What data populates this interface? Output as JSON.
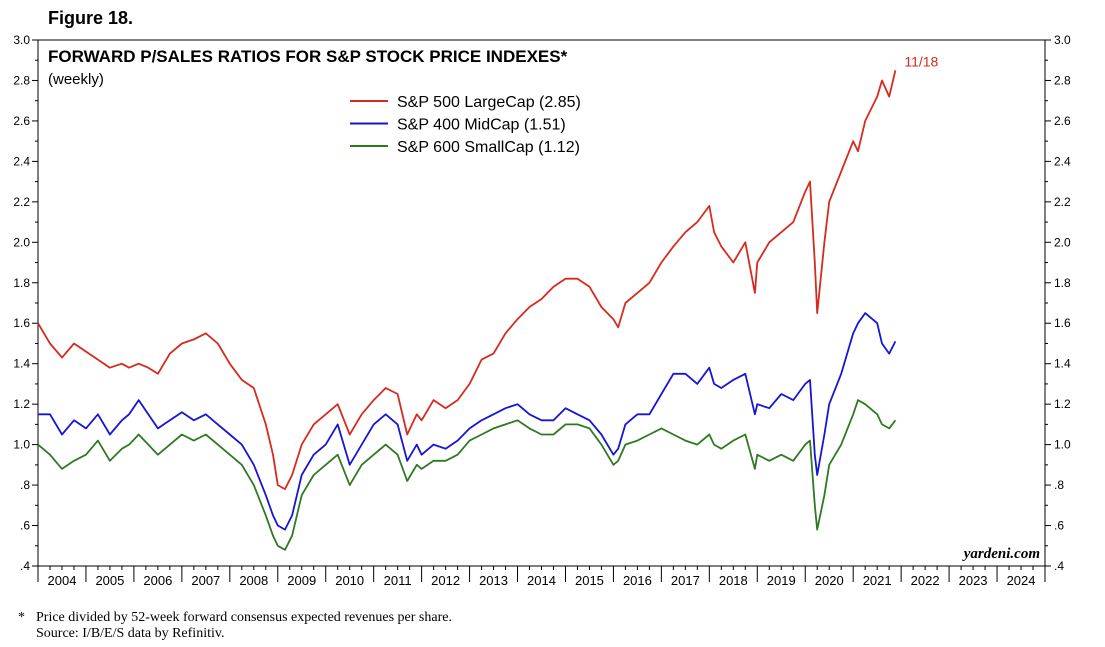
{
  "figure_label": "Figure 18.",
  "watermark": "yardeni.com",
  "footnote": "Price divided by 52-week forward consensus expected revenues per share.",
  "footnote_marker": "*",
  "source": "Source: I/B/E/S data by Refinitiv.",
  "chart_data": {
    "type": "line",
    "title": "FORWARD P/SALES RATIOS FOR S&P STOCK PRICE INDEXES*",
    "subtitle": "(weekly)",
    "xlabel": "",
    "ylabel": "",
    "xlim": [
      2004,
      2025
    ],
    "ylim": [
      0.4,
      3.0
    ],
    "y_ticks": [
      0.4,
      0.6,
      0.8,
      1.0,
      1.2,
      1.4,
      1.6,
      1.8,
      2.0,
      2.2,
      2.4,
      2.6,
      2.8,
      3.0
    ],
    "y_tick_labels": [
      ".4",
      ".6",
      ".8",
      "1.0",
      "1.2",
      "1.4",
      "1.6",
      "1.8",
      "2.0",
      "2.2",
      "2.4",
      "2.6",
      "2.8",
      "3.0"
    ],
    "x_tick_labels": [
      "2004",
      "2005",
      "2006",
      "2007",
      "2008",
      "2009",
      "2010",
      "2011",
      "2012",
      "2013",
      "2014",
      "2015",
      "2016",
      "2017",
      "2018",
      "2019",
      "2020",
      "2021",
      "2022",
      "2023",
      "2024"
    ],
    "legend_position": "top-center",
    "grid": false,
    "annotation": {
      "text": "11/18",
      "x": 2021.9,
      "y": 2.85,
      "color": "#d62a1e"
    },
    "series": [
      {
        "name": "S&P 500 LargeCap (2.85)",
        "color": "#d62a1e",
        "x": [
          2004.0,
          2004.25,
          2004.5,
          2004.75,
          2005.0,
          2005.25,
          2005.5,
          2005.75,
          2005.9,
          2006.1,
          2006.3,
          2006.5,
          2006.75,
          2007.0,
          2007.25,
          2007.5,
          2007.75,
          2008.0,
          2008.25,
          2008.5,
          2008.75,
          2008.9,
          2009.0,
          2009.15,
          2009.3,
          2009.5,
          2009.75,
          2010.0,
          2010.25,
          2010.5,
          2010.75,
          2011.0,
          2011.25,
          2011.5,
          2011.7,
          2011.9,
          2012.0,
          2012.25,
          2012.5,
          2012.75,
          2013.0,
          2013.25,
          2013.5,
          2013.75,
          2014.0,
          2014.25,
          2014.5,
          2014.75,
          2015.0,
          2015.25,
          2015.5,
          2015.75,
          2016.0,
          2016.1,
          2016.25,
          2016.5,
          2016.75,
          2017.0,
          2017.25,
          2017.5,
          2017.75,
          2018.0,
          2018.1,
          2018.25,
          2018.5,
          2018.75,
          2018.95,
          2019.0,
          2019.25,
          2019.5,
          2019.75,
          2020.0,
          2020.1,
          2020.2,
          2020.25,
          2020.4,
          2020.5,
          2020.75,
          2021.0,
          2021.1,
          2021.25,
          2021.5,
          2021.6,
          2021.75,
          2021.88
        ],
        "values": [
          1.6,
          1.5,
          1.43,
          1.5,
          1.46,
          1.42,
          1.38,
          1.4,
          1.38,
          1.4,
          1.38,
          1.35,
          1.45,
          1.5,
          1.52,
          1.55,
          1.5,
          1.4,
          1.32,
          1.28,
          1.1,
          0.95,
          0.8,
          0.78,
          0.85,
          1.0,
          1.1,
          1.15,
          1.2,
          1.05,
          1.15,
          1.22,
          1.28,
          1.25,
          1.05,
          1.15,
          1.12,
          1.22,
          1.18,
          1.22,
          1.3,
          1.42,
          1.45,
          1.55,
          1.62,
          1.68,
          1.72,
          1.78,
          1.82,
          1.82,
          1.78,
          1.68,
          1.62,
          1.58,
          1.7,
          1.75,
          1.8,
          1.9,
          1.98,
          2.05,
          2.1,
          2.18,
          2.05,
          1.98,
          1.9,
          2.0,
          1.75,
          1.9,
          2.0,
          2.05,
          2.1,
          2.25,
          2.3,
          1.9,
          1.65,
          2.0,
          2.2,
          2.35,
          2.5,
          2.45,
          2.6,
          2.72,
          2.8,
          2.72,
          2.85
        ]
      },
      {
        "name": "S&P 400 MidCap (1.51)",
        "color": "#1515d6",
        "x": [
          2004.0,
          2004.25,
          2004.5,
          2004.75,
          2005.0,
          2005.25,
          2005.5,
          2005.75,
          2005.9,
          2006.1,
          2006.3,
          2006.5,
          2006.75,
          2007.0,
          2007.25,
          2007.5,
          2007.75,
          2008.0,
          2008.25,
          2008.5,
          2008.75,
          2008.9,
          2009.0,
          2009.15,
          2009.3,
          2009.5,
          2009.75,
          2010.0,
          2010.25,
          2010.5,
          2010.75,
          2011.0,
          2011.25,
          2011.5,
          2011.7,
          2011.9,
          2012.0,
          2012.25,
          2012.5,
          2012.75,
          2013.0,
          2013.25,
          2013.5,
          2013.75,
          2014.0,
          2014.25,
          2014.5,
          2014.75,
          2015.0,
          2015.25,
          2015.5,
          2015.75,
          2016.0,
          2016.1,
          2016.25,
          2016.5,
          2016.75,
          2017.0,
          2017.25,
          2017.5,
          2017.75,
          2018.0,
          2018.1,
          2018.25,
          2018.5,
          2018.75,
          2018.95,
          2019.0,
          2019.25,
          2019.5,
          2019.75,
          2020.0,
          2020.1,
          2020.2,
          2020.25,
          2020.4,
          2020.5,
          2020.75,
          2021.0,
          2021.1,
          2021.25,
          2021.5,
          2021.6,
          2021.75,
          2021.88
        ],
        "values": [
          1.15,
          1.15,
          1.05,
          1.12,
          1.08,
          1.15,
          1.05,
          1.12,
          1.15,
          1.22,
          1.15,
          1.08,
          1.12,
          1.16,
          1.12,
          1.15,
          1.1,
          1.05,
          1.0,
          0.9,
          0.75,
          0.65,
          0.6,
          0.58,
          0.65,
          0.85,
          0.95,
          1.0,
          1.1,
          0.9,
          1.0,
          1.1,
          1.15,
          1.1,
          0.92,
          1.0,
          0.95,
          1.0,
          0.98,
          1.02,
          1.08,
          1.12,
          1.15,
          1.18,
          1.2,
          1.15,
          1.12,
          1.12,
          1.18,
          1.15,
          1.12,
          1.05,
          0.95,
          0.98,
          1.1,
          1.15,
          1.15,
          1.25,
          1.35,
          1.35,
          1.3,
          1.38,
          1.3,
          1.28,
          1.32,
          1.35,
          1.15,
          1.2,
          1.18,
          1.25,
          1.22,
          1.3,
          1.32,
          0.95,
          0.85,
          1.05,
          1.2,
          1.35,
          1.55,
          1.6,
          1.65,
          1.6,
          1.5,
          1.45,
          1.51
        ]
      },
      {
        "name": "S&P 600 SmallCap (1.12)",
        "color": "#2f7a21",
        "x": [
          2004.0,
          2004.25,
          2004.5,
          2004.75,
          2005.0,
          2005.25,
          2005.5,
          2005.75,
          2005.9,
          2006.1,
          2006.3,
          2006.5,
          2006.75,
          2007.0,
          2007.25,
          2007.5,
          2007.75,
          2008.0,
          2008.25,
          2008.5,
          2008.75,
          2008.9,
          2009.0,
          2009.15,
          2009.3,
          2009.5,
          2009.75,
          2010.0,
          2010.25,
          2010.5,
          2010.75,
          2011.0,
          2011.25,
          2011.5,
          2011.7,
          2011.9,
          2012.0,
          2012.25,
          2012.5,
          2012.75,
          2013.0,
          2013.25,
          2013.5,
          2013.75,
          2014.0,
          2014.25,
          2014.5,
          2014.75,
          2015.0,
          2015.25,
          2015.5,
          2015.75,
          2016.0,
          2016.1,
          2016.25,
          2016.5,
          2016.75,
          2017.0,
          2017.25,
          2017.5,
          2017.75,
          2018.0,
          2018.1,
          2018.25,
          2018.5,
          2018.75,
          2018.95,
          2019.0,
          2019.25,
          2019.5,
          2019.75,
          2020.0,
          2020.1,
          2020.2,
          2020.25,
          2020.4,
          2020.5,
          2020.75,
          2021.0,
          2021.1,
          2021.25,
          2021.5,
          2021.6,
          2021.75,
          2021.88
        ],
        "values": [
          1.0,
          0.95,
          0.88,
          0.92,
          0.95,
          1.02,
          0.92,
          0.98,
          1.0,
          1.05,
          1.0,
          0.95,
          1.0,
          1.05,
          1.02,
          1.05,
          1.0,
          0.95,
          0.9,
          0.8,
          0.65,
          0.55,
          0.5,
          0.48,
          0.55,
          0.75,
          0.85,
          0.9,
          0.95,
          0.8,
          0.9,
          0.95,
          1.0,
          0.95,
          0.82,
          0.9,
          0.88,
          0.92,
          0.92,
          0.95,
          1.02,
          1.05,
          1.08,
          1.1,
          1.12,
          1.08,
          1.05,
          1.05,
          1.1,
          1.1,
          1.08,
          1.0,
          0.9,
          0.92,
          1.0,
          1.02,
          1.05,
          1.08,
          1.05,
          1.02,
          1.0,
          1.05,
          1.0,
          0.98,
          1.02,
          1.05,
          0.88,
          0.95,
          0.92,
          0.95,
          0.92,
          1.0,
          1.02,
          0.7,
          0.58,
          0.75,
          0.9,
          1.0,
          1.15,
          1.22,
          1.2,
          1.15,
          1.1,
          1.08,
          1.12
        ]
      }
    ]
  }
}
